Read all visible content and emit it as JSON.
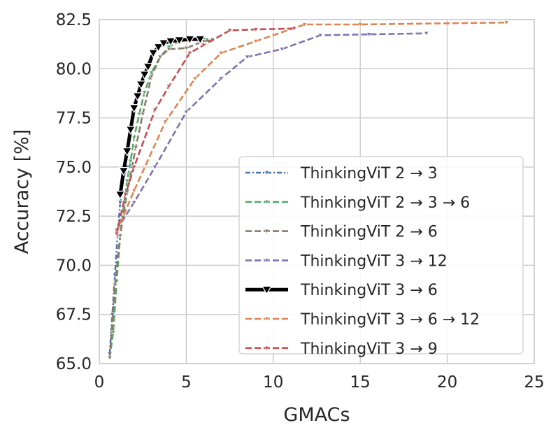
{
  "chart_data": {
    "type": "line",
    "title": "",
    "xlabel": "GMACs",
    "ylabel": "Accuracy [%]",
    "xlim": [
      0,
      25
    ],
    "ylim": [
      65.0,
      82.5
    ],
    "xticks": [
      0,
      5,
      10,
      15,
      20,
      25
    ],
    "yticks": [
      65.0,
      67.5,
      70.0,
      72.5,
      75.0,
      77.5,
      80.0,
      82.5
    ],
    "xtick_labels": [
      "0",
      "5",
      "10",
      "15",
      "20",
      "25"
    ],
    "ytick_labels": [
      "65.0",
      "67.5",
      "70.0",
      "72.5",
      "75.0",
      "77.5",
      "80.0",
      "82.5"
    ],
    "grid": true,
    "legend_position": "lower-right",
    "series": [
      {
        "name": "ThinkingViT 2 → 3",
        "color": "#4c72b0",
        "style": "dash-dot",
        "x": [
          0.6,
          0.75,
          0.9,
          1.05,
          1.2,
          1.4,
          1.6
        ],
        "y": [
          65.5,
          67.5,
          69.5,
          71.5,
          73.2,
          74.5,
          75.0
        ]
      },
      {
        "name": "ThinkingViT 2 → 3 → 6",
        "color": "#55a868",
        "style": "dash",
        "x": [
          0.6,
          0.8,
          1.0,
          1.2,
          1.4,
          1.6,
          1.8,
          2.0,
          2.3,
          2.6,
          3.0,
          3.5,
          4.0,
          4.5,
          5.0,
          5.5,
          6.0,
          6.5
        ],
        "y": [
          65.3,
          66.6,
          69.2,
          71.5,
          73.0,
          74.3,
          75.3,
          76.5,
          77.7,
          78.8,
          79.8,
          80.6,
          81.1,
          81.35,
          81.45,
          81.5,
          81.5,
          81.5
        ]
      },
      {
        "name": "ThinkingViT 2 → 6",
        "color": "#8c7a6b",
        "style": "dash",
        "x": [
          0.6,
          0.9,
          1.2,
          1.5,
          1.8,
          2.1,
          2.5,
          3.0,
          3.5,
          4.0,
          5.0,
          6.0,
          6.5
        ],
        "y": [
          65.3,
          69.0,
          71.5,
          73.2,
          74.6,
          76.0,
          77.7,
          79.6,
          80.6,
          81.0,
          81.05,
          81.4,
          81.45
        ]
      },
      {
        "name": "ThinkingViT 3 → 12",
        "color": "#8172b3",
        "style": "dash",
        "x": [
          1.0,
          2.0,
          3.2,
          5.0,
          7.0,
          8.5,
          10.5,
          12.7,
          15.5,
          18.8
        ],
        "y": [
          71.8,
          73.2,
          75.0,
          77.8,
          79.5,
          80.6,
          81.0,
          81.7,
          81.75,
          81.8
        ]
      },
      {
        "name": "ThinkingViT 3 → 6",
        "color": "#000000",
        "style": "solid",
        "x": [
          1.2,
          1.4,
          1.6,
          1.8,
          2.0,
          2.2,
          2.4,
          2.6,
          2.8,
          3.1,
          3.4,
          3.7,
          4.1,
          4.6,
          5.2,
          5.8
        ],
        "y": [
          73.6,
          74.8,
          75.8,
          76.9,
          78.0,
          78.6,
          79.2,
          79.7,
          80.1,
          80.8,
          81.1,
          81.3,
          81.4,
          81.45,
          81.5,
          81.5
        ]
      },
      {
        "name": "ThinkingViT 3 → 6 → 12",
        "color": "#dd8452",
        "style": "dash",
        "x": [
          1.0,
          2.0,
          3.8,
          5.5,
          7.0,
          9.0,
          11.8,
          15.0,
          23.4
        ],
        "y": [
          71.7,
          73.8,
          77.3,
          79.5,
          80.8,
          81.4,
          82.25,
          82.25,
          82.35
        ]
      },
      {
        "name": "ThinkingViT 3 → 9",
        "color": "#c44e52",
        "style": "dash",
        "x": [
          1.0,
          1.5,
          2.0,
          3.2,
          4.0,
          5.2,
          6.0,
          7.5,
          9.0,
          11.2
        ],
        "y": [
          71.6,
          73.6,
          75.0,
          77.9,
          79.1,
          80.8,
          81.2,
          81.95,
          82.0,
          82.05
        ]
      }
    ]
  }
}
